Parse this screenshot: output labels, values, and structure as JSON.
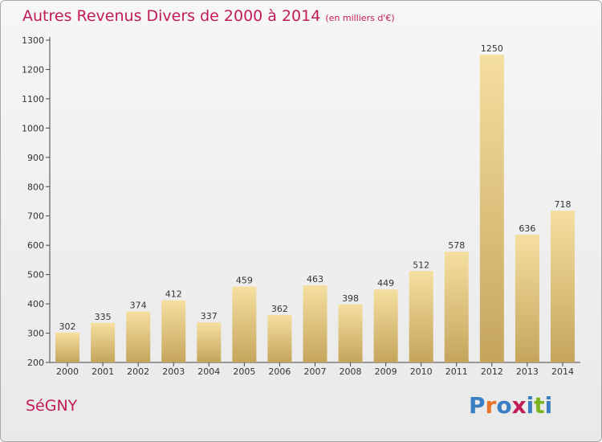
{
  "title": "Autres Revenus Divers de 2000 à 2014",
  "unit_note": "(en milliers d'€)",
  "commune": "SéGNY",
  "logo": {
    "text": "Proxiti",
    "letter_colors": [
      "#3a7fc4",
      "#e8732a",
      "#3a7fc4",
      "#c21b5a",
      "#3a7fc4",
      "#7ab51d",
      "#3a7fc4"
    ]
  },
  "colors": {
    "accent": "#c21b5a",
    "bar_light": "#f5dfa0",
    "bar_dark": "#c5a55c"
  },
  "chart_data": {
    "type": "bar",
    "categories": [
      "2000",
      "2001",
      "2002",
      "2003",
      "2004",
      "2005",
      "2006",
      "2007",
      "2008",
      "2009",
      "2010",
      "2011",
      "2012",
      "2013",
      "2014"
    ],
    "values": [
      302,
      335,
      374,
      412,
      337,
      459,
      362,
      463,
      398,
      449,
      512,
      578,
      1250,
      636,
      718
    ],
    "ylim": [
      200,
      1300
    ],
    "yticks": [
      200,
      300,
      400,
      500,
      600,
      700,
      800,
      900,
      1000,
      1100,
      1200,
      1300
    ],
    "grid": false,
    "legend": "none"
  }
}
